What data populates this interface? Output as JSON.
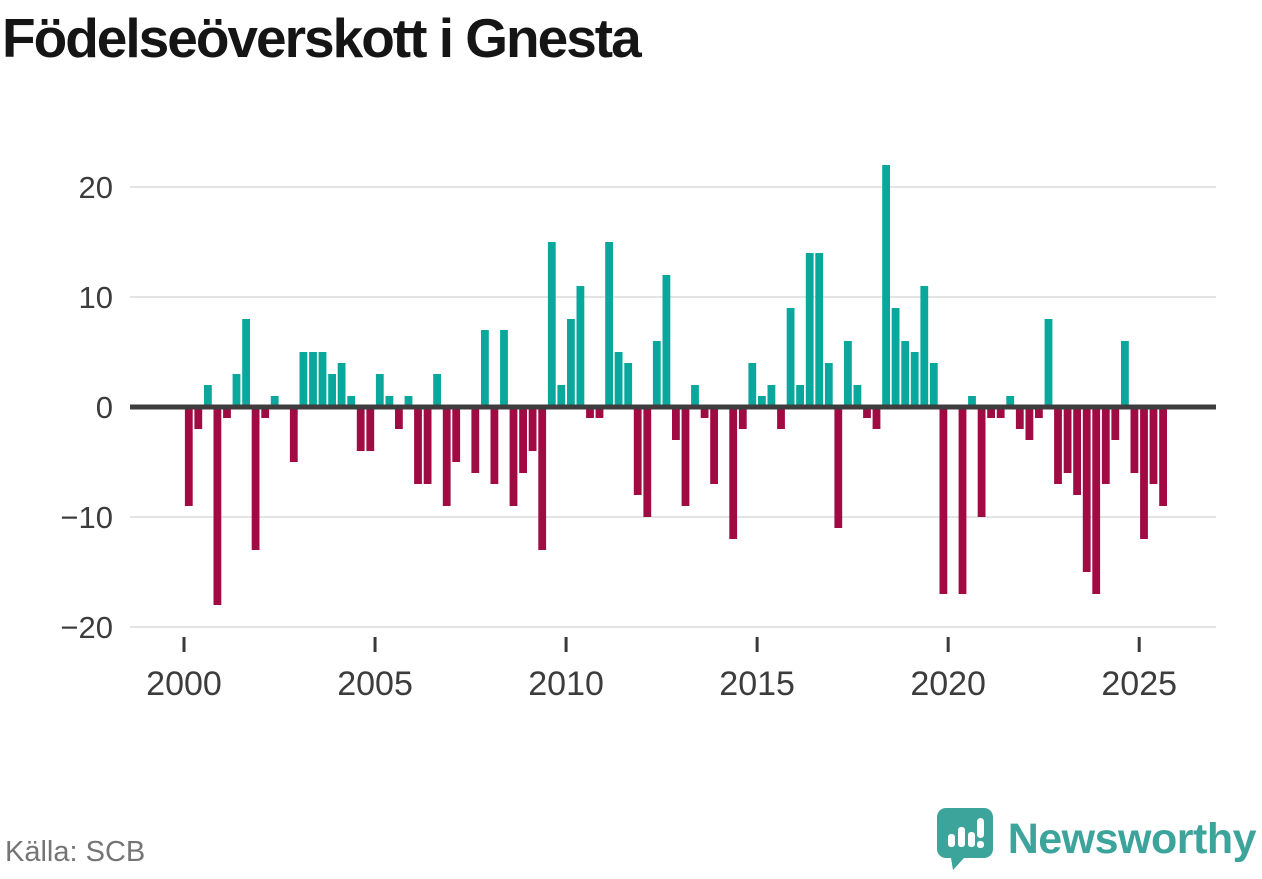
{
  "title": "Födelseöverskott i Gnesta",
  "source": "Källa: SCB",
  "branding": {
    "logo_text": "Newsworthy",
    "logo_icon": "speech-bubble-bar-chart-icon"
  },
  "colors": {
    "positive_bar": "#09a79c",
    "negative_bar": "#a00b44",
    "zero_axis": "#3d3d3d",
    "gridline": "#e4e4e4",
    "tick": "#3a3a3a",
    "axis_label": "#3c3c3c",
    "title_text": "#151515",
    "source_text": "#757575",
    "brand_teal": "#3da49c"
  },
  "chart_data": {
    "type": "bar",
    "title": "Födelseöverskott i Gnesta",
    "frequency": "quarterly",
    "start": "2000 Q1",
    "end": "2025 Q3",
    "ylabel": "",
    "xlabel": "",
    "ylim": [
      -20,
      22
    ],
    "yticks": [
      20,
      10,
      0,
      -10,
      -20
    ],
    "xticks": [
      2000,
      2005,
      2010,
      2015,
      2020,
      2025
    ],
    "grid": true,
    "legend": false,
    "values": [
      -9,
      -2,
      2,
      -18,
      -1,
      3,
      8,
      -13,
      -1,
      1,
      0,
      -5,
      5,
      5,
      5,
      3,
      4,
      1,
      -4,
      -4,
      3,
      1,
      -2,
      1,
      -7,
      -7,
      3,
      -9,
      -5,
      0,
      -6,
      7,
      -7,
      7,
      -9,
      -6,
      -4,
      -13,
      15,
      2,
      8,
      11,
      -1,
      -1,
      15,
      5,
      4,
      -8,
      -10,
      6,
      12,
      -3,
      -9,
      2,
      -1,
      -7,
      0,
      -12,
      -2,
      4,
      1,
      2,
      -2,
      9,
      2,
      14,
      14,
      4,
      -11,
      6,
      2,
      -1,
      -2,
      22,
      9,
      6,
      5,
      11,
      4,
      -17,
      0,
      -17,
      1,
      -10,
      -1,
      -1,
      1,
      -2,
      -3,
      -1,
      8,
      -7,
      -6,
      -8,
      -15,
      -17,
      -7,
      -3,
      6,
      -6,
      -12,
      -7,
      -9
    ]
  }
}
